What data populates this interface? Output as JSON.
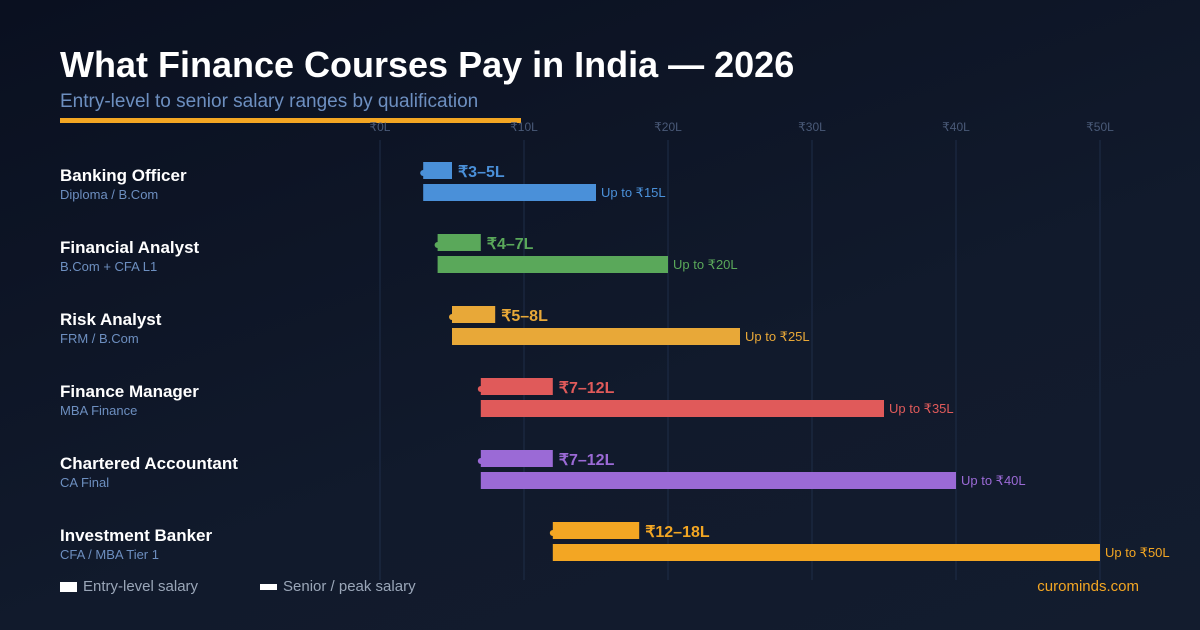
{
  "header": {
    "title": "What Finance Courses Pay in India — 2026",
    "subtitle": "Entry-level to senior salary ranges by qualification"
  },
  "chart_data": {
    "type": "bar",
    "xlim": [
      0,
      50
    ],
    "x_ticks": [
      {
        "value": 0,
        "label": "₹0L"
      },
      {
        "value": 10,
        "label": "₹10L"
      },
      {
        "value": 20,
        "label": "₹20L"
      },
      {
        "value": 30,
        "label": "₹30L"
      },
      {
        "value": 40,
        "label": "₹40L"
      },
      {
        "value": 50,
        "label": "₹50L"
      }
    ],
    "grid": true,
    "categories": [
      {
        "name": "Banking Officer",
        "qualification": "Diploma / B.Com",
        "entry": [
          3,
          5
        ],
        "entry_label": "₹3–5L",
        "senior": 15,
        "senior_label": "Up to ₹15L",
        "color": "#4a90d9"
      },
      {
        "name": "Financial Analyst",
        "qualification": "B.Com + CFA L1",
        "entry": [
          4,
          7
        ],
        "entry_label": "₹4–7L",
        "senior": 20,
        "senior_label": "Up to ₹20L",
        "color": "#5aa85a"
      },
      {
        "name": "Risk Analyst",
        "qualification": "FRM / B.Com",
        "entry": [
          5,
          8
        ],
        "entry_label": "₹5–8L",
        "senior": 25,
        "senior_label": "Up to ₹25L",
        "color": "#e8a838"
      },
      {
        "name": "Finance Manager",
        "qualification": "MBA Finance",
        "entry": [
          7,
          12
        ],
        "entry_label": "₹7–12L",
        "senior": 35,
        "senior_label": "Up to ₹35L",
        "color": "#e05a5a"
      },
      {
        "name": "Chartered Accountant",
        "qualification": "CA Final",
        "entry": [
          7,
          12
        ],
        "entry_label": "₹7–12L",
        "senior": 40,
        "senior_label": "Up to ₹40L",
        "color": "#9b6ad6"
      },
      {
        "name": "Investment Banker",
        "qualification": "CFA / MBA Tier 1",
        "entry": [
          12,
          18
        ],
        "entry_label": "₹12–18L",
        "senior": 50,
        "senior_label": "Up to ₹50L",
        "color": "#f3a623"
      }
    ],
    "legend": {
      "position": "bottom-left",
      "entries": [
        "Entry-level salary",
        "Senior / peak salary"
      ]
    }
  },
  "footer": {
    "brand": "curominds.com"
  }
}
